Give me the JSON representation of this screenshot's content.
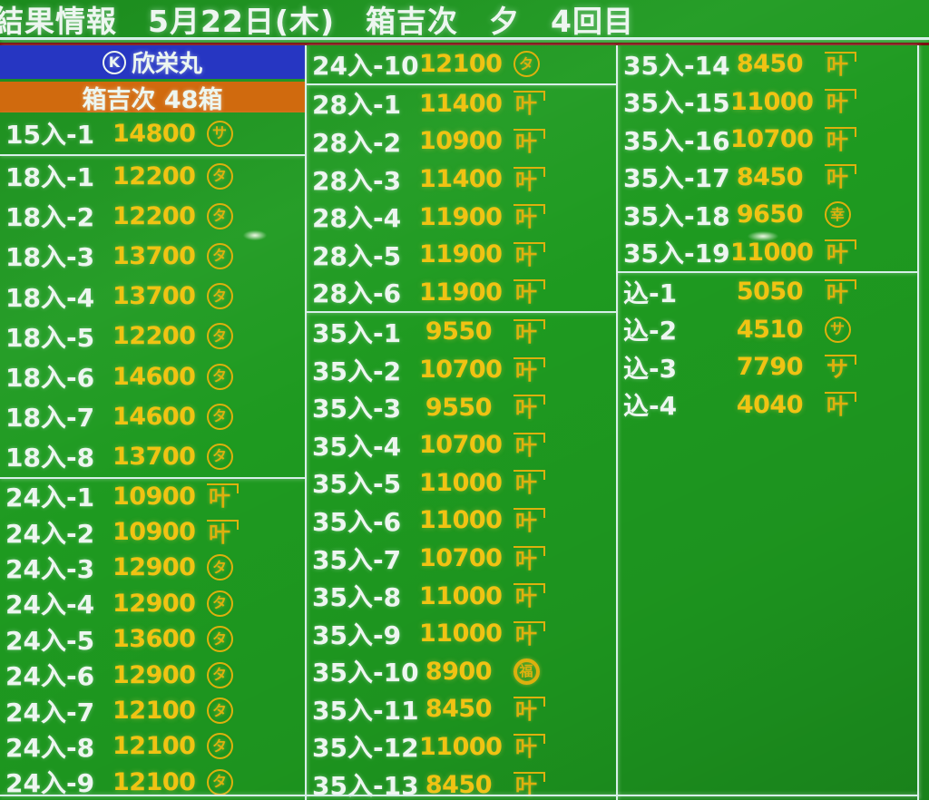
{
  "title": "結果情報　5月22日(木)　箱吉次　夕　4回目",
  "vessel": {
    "mark": "K",
    "name": "欣栄丸"
  },
  "lot_banner": "箱吉次 48箱",
  "colors": {
    "background_green": "#1e9a20",
    "price_yellow": "#f0c313",
    "label_white": "#edf6f0",
    "banner_blue": "#2636c2",
    "banner_orange": "#d06a0e",
    "divider_line": "#d6efe8",
    "under_title_red": "#7c1010"
  },
  "mark_legend": {
    "circle": "buyer mark drawn as character inside a circle",
    "kane": "buyer mark drawn as character under a kane (angle) overline"
  },
  "columns": [
    {
      "groups": [
        {
          "rows": [
            {
              "label": "15入-1",
              "price": "14800",
              "mark": {
                "t": "circle",
                "c": "サ"
              }
            }
          ]
        },
        {
          "rows": [
            {
              "label": "18入-1",
              "price": "12200",
              "mark": {
                "t": "circle",
                "c": "タ"
              }
            },
            {
              "label": "18入-2",
              "price": "12200",
              "mark": {
                "t": "circle",
                "c": "タ"
              }
            },
            {
              "label": "18入-3",
              "price": "13700",
              "mark": {
                "t": "circle",
                "c": "タ"
              }
            },
            {
              "label": "18入-4",
              "price": "13700",
              "mark": {
                "t": "circle",
                "c": "タ"
              }
            },
            {
              "label": "18入-5",
              "price": "12200",
              "mark": {
                "t": "circle",
                "c": "タ"
              }
            },
            {
              "label": "18入-6",
              "price": "14600",
              "mark": {
                "t": "circle",
                "c": "タ"
              }
            },
            {
              "label": "18入-7",
              "price": "14600",
              "mark": {
                "t": "circle",
                "c": "タ"
              }
            },
            {
              "label": "18入-8",
              "price": "13700",
              "mark": {
                "t": "circle",
                "c": "タ"
              }
            }
          ]
        },
        {
          "rows": [
            {
              "label": "24入-1",
              "price": "10900",
              "mark": {
                "t": "kane",
                "c": "叶"
              }
            },
            {
              "label": "24入-2",
              "price": "10900",
              "mark": {
                "t": "kane",
                "c": "叶"
              }
            },
            {
              "label": "24入-3",
              "price": "12900",
              "mark": {
                "t": "circle",
                "c": "タ"
              }
            },
            {
              "label": "24入-4",
              "price": "12900",
              "mark": {
                "t": "circle",
                "c": "タ"
              }
            },
            {
              "label": "24入-5",
              "price": "13600",
              "mark": {
                "t": "circle",
                "c": "タ"
              }
            },
            {
              "label": "24入-6",
              "price": "12900",
              "mark": {
                "t": "circle",
                "c": "タ"
              }
            },
            {
              "label": "24入-7",
              "price": "12100",
              "mark": {
                "t": "circle",
                "c": "タ"
              }
            },
            {
              "label": "24入-8",
              "price": "12100",
              "mark": {
                "t": "circle",
                "c": "タ"
              }
            },
            {
              "label": "24入-9",
              "price": "12100",
              "mark": {
                "t": "circle",
                "c": "タ"
              }
            }
          ]
        }
      ]
    },
    {
      "groups": [
        {
          "rows": [
            {
              "label": "24入-10",
              "price": "12100",
              "mark": {
                "t": "circle",
                "c": "タ"
              }
            }
          ]
        },
        {
          "rows": [
            {
              "label": "28入-1",
              "price": "11400",
              "mark": {
                "t": "kane",
                "c": "叶"
              }
            },
            {
              "label": "28入-2",
              "price": "10900",
              "mark": {
                "t": "kane",
                "c": "叶"
              }
            },
            {
              "label": "28入-3",
              "price": "11400",
              "mark": {
                "t": "kane",
                "c": "叶"
              }
            },
            {
              "label": "28入-4",
              "price": "11900",
              "mark": {
                "t": "kane",
                "c": "叶"
              }
            },
            {
              "label": "28入-5",
              "price": "11900",
              "mark": {
                "t": "kane",
                "c": "叶"
              }
            },
            {
              "label": "28入-6",
              "price": "11900",
              "mark": {
                "t": "kane",
                "c": "叶"
              }
            }
          ]
        },
        {
          "rows": [
            {
              "label": "35入-1",
              "price": "9550",
              "mark": {
                "t": "kane",
                "c": "叶"
              }
            },
            {
              "label": "35入-2",
              "price": "10700",
              "mark": {
                "t": "kane",
                "c": "叶"
              }
            },
            {
              "label": "35入-3",
              "price": "9550",
              "mark": {
                "t": "kane",
                "c": "叶"
              }
            },
            {
              "label": "35入-4",
              "price": "10700",
              "mark": {
                "t": "kane",
                "c": "叶"
              }
            },
            {
              "label": "35入-5",
              "price": "11000",
              "mark": {
                "t": "kane",
                "c": "叶"
              }
            },
            {
              "label": "35入-6",
              "price": "11000",
              "mark": {
                "t": "kane",
                "c": "叶"
              }
            },
            {
              "label": "35入-7",
              "price": "10700",
              "mark": {
                "t": "kane",
                "c": "叶"
              }
            },
            {
              "label": "35入-8",
              "price": "11000",
              "mark": {
                "t": "kane",
                "c": "叶"
              }
            },
            {
              "label": "35入-9",
              "price": "11000",
              "mark": {
                "t": "kane",
                "c": "叶"
              }
            },
            {
              "label": "35入-10",
              "price": "8900",
              "mark": {
                "t": "circle",
                "c": "福",
                "bold": true
              }
            },
            {
              "label": "35入-11",
              "price": "8450",
              "mark": {
                "t": "kane",
                "c": "叶"
              }
            },
            {
              "label": "35入-12",
              "price": "11000",
              "mark": {
                "t": "kane",
                "c": "叶"
              }
            },
            {
              "label": "35入-13",
              "price": "8450",
              "mark": {
                "t": "kane",
                "c": "叶"
              }
            }
          ]
        }
      ]
    },
    {
      "groups": [
        {
          "rows": [
            {
              "label": "35入-14",
              "price": "8450",
              "mark": {
                "t": "kane",
                "c": "叶"
              }
            },
            {
              "label": "35入-15",
              "price": "11000",
              "mark": {
                "t": "kane",
                "c": "叶"
              }
            },
            {
              "label": "35入-16",
              "price": "10700",
              "mark": {
                "t": "kane",
                "c": "叶"
              }
            },
            {
              "label": "35入-17",
              "price": "8450",
              "mark": {
                "t": "kane",
                "c": "叶"
              }
            },
            {
              "label": "35入-18",
              "price": "9650",
              "mark": {
                "t": "circle",
                "c": "幸"
              }
            },
            {
              "label": "35入-19",
              "price": "11000",
              "mark": {
                "t": "kane",
                "c": "叶"
              }
            }
          ]
        },
        {
          "rows": [
            {
              "label": "込-1",
              "price": "5050",
              "mark": {
                "t": "kane",
                "c": "叶"
              }
            },
            {
              "label": "込-2",
              "price": "4510",
              "mark": {
                "t": "circle",
                "c": "サ"
              }
            },
            {
              "label": "込-3",
              "price": "7790",
              "mark": {
                "t": "kane",
                "c": "サ"
              }
            },
            {
              "label": "込-4",
              "price": "4040",
              "mark": {
                "t": "kane",
                "c": "叶"
              }
            }
          ]
        }
      ]
    }
  ]
}
